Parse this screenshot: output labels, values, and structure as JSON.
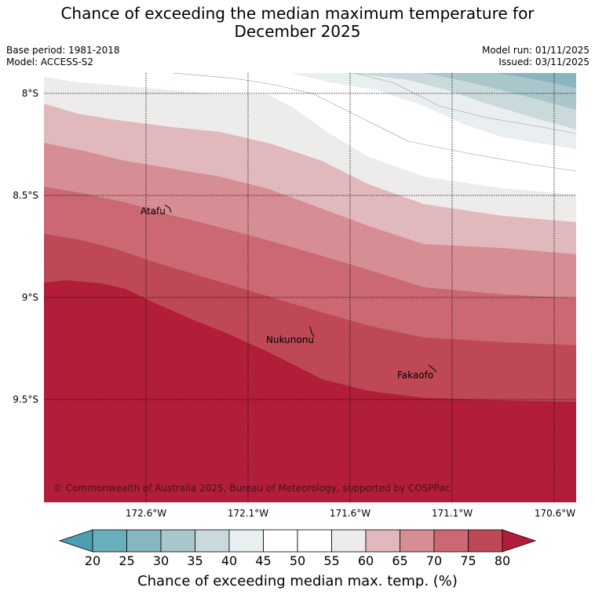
{
  "title_line1": "Chance of exceeding the median maximum temperature for",
  "title_line2": "December 2025",
  "base_period": "Base period: 1981-2018",
  "model": "Model: ACCESS-S2",
  "model_run": "Model run: 01/11/2025",
  "issued": "Issued: 03/11/2025",
  "lat_labels": [
    "8°S",
    "8.5°S",
    "9°S",
    "9.5°S"
  ],
  "lon_labels": [
    "172.6°W",
    "172.1°W",
    "171.6°W",
    "171.1°W",
    "170.6°W"
  ],
  "places": [
    "Atafu",
    "Nukunonu",
    "Fakaofo"
  ],
  "copyright": "© Commonwealth of Australia 2025, Bureau of Meteorology, supported by COSPPac",
  "colorbar": {
    "ticks": [
      "20",
      "25",
      "30",
      "35",
      "40",
      "45",
      "50",
      "55",
      "60",
      "65",
      "70",
      "75",
      "80"
    ],
    "colors": [
      "#6aadbb",
      "#89b5c0",
      "#a9c6cb",
      "#cad9dc",
      "#e9eff1",
      "#ffffff",
      "#ffffff",
      "#eeeceb",
      "#e1b9bd",
      "#d78d94",
      "#cb6873",
      "#be4856"
    ],
    "under_color": "#4aa0b0",
    "over_color": "#b21e39",
    "label": "Chance of exceeding median max. temp. (%)"
  },
  "map_bands": [
    {
      "range": "80+",
      "color": "#b21e39"
    },
    {
      "range": "75-80",
      "color": "#be4856"
    },
    {
      "range": "70-75",
      "color": "#cb6873"
    },
    {
      "range": "65-70",
      "color": "#d78d94"
    },
    {
      "range": "60-65",
      "color": "#e1b9bd"
    },
    {
      "range": "55-60",
      "color": "#eeeceb"
    },
    {
      "range": "45-55",
      "color": "#ffffff"
    },
    {
      "range": "40-45",
      "color": "#e9eff1"
    },
    {
      "range": "35-40",
      "color": "#cad9dc"
    },
    {
      "range": "30-35",
      "color": "#a9c6cb"
    },
    {
      "range": "25-30",
      "color": "#89b5c0"
    }
  ]
}
